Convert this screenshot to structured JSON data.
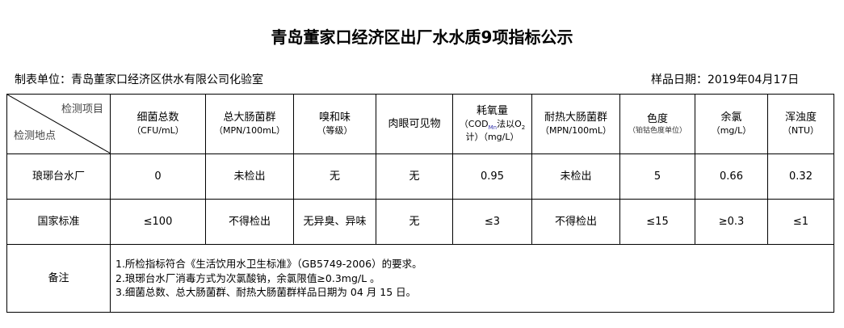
{
  "title": "青岛董家口经济区出厂水水质9项指标公示",
  "unit": "制表单位：青岛董家口经济区供水有限公司化验室",
  "sample_date": "样品日期：2019年04月17日",
  "corner": {
    "top": "检测项目",
    "bottom": "检测地点"
  },
  "headers": [
    {
      "name": "细菌总数",
      "unit": "（CFU/mL）"
    },
    {
      "name": "总大肠菌群",
      "unit": "（MPN/100mL）"
    },
    {
      "name": "嗅和味",
      "unit": "（等级）"
    },
    {
      "name": "肉眼可见物",
      "unit": ""
    },
    {
      "name": "耗氧量",
      "unit": "（COD",
      "sub": "Mn",
      "unit2": "法以O",
      "sub2": "2",
      "unit3": "计）（mg/L）"
    },
    {
      "name": "耐热大肠菌群",
      "unit": "（MPN/100mL）"
    },
    {
      "name": "色度",
      "unit": "（铂钴色度单位）"
    },
    {
      "name": "余氯",
      "unit": "（mg/L）"
    },
    {
      "name": "浑浊度",
      "unit": "（NTU）"
    }
  ],
  "rows": [
    {
      "label": "琅琊台水厂",
      "values": [
        "0",
        "未检出",
        "无",
        "无",
        "0.95",
        "未检出",
        "5",
        "0.66",
        "0.32"
      ]
    },
    {
      "label": "国家标准",
      "values": [
        "≤100",
        "不得检出",
        "无异臭、异味",
        "无",
        "≤3",
        "不得检出",
        "≤15",
        "≥0.3",
        "≤1"
      ]
    }
  ],
  "remarks": {
    "label": "备注",
    "lines": [
      "1.所检指标符合《生活饮用水卫生标准》（GB5749-2006）的要求。",
      "2.琅琊台水厂消毒方式为次氯酸钠，余氯限值≥0.3mg/L 。",
      "3.细菌总数、总大肠菌群、耐热大肠菌群样品日期为 04 月 15 日。"
    ]
  }
}
